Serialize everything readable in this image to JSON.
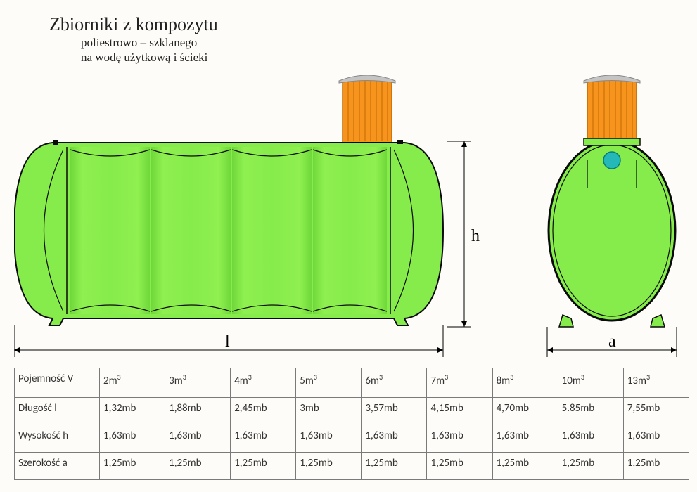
{
  "title": "Zbiorniki z kompozytu",
  "subtitle1": "poliestrowo – szklanego",
  "subtitle2": "na wodę użytkową i ścieki",
  "dim_l": "l",
  "dim_h": "h",
  "dim_a": "a",
  "colors": {
    "tank_fill": "#86ec4b",
    "tank_stroke": "#0a0a0a",
    "riser_fill": "#f7941e",
    "riser_stroke": "#c06a00",
    "cap_fill": "#c4c4c4",
    "port_fill": "#24b8b8",
    "bg": "#fdfcf8",
    "grid": "#7a7a7a"
  },
  "table": {
    "headers": [
      "Pojemność V",
      "2m³",
      "3m³",
      "4m³",
      "5m³",
      "6m³",
      "7m³",
      "8m³",
      "10m³",
      "13m³"
    ],
    "rows": [
      [
        "Długość l",
        "1,32mb",
        "1,88mb",
        "2,45mb",
        "3mb",
        "3,57mb",
        "4,15mb",
        "4,70mb",
        "5.85mb",
        "7,55mb"
      ],
      [
        "Wysokość h",
        "1,63mb",
        "1,63mb",
        "1,63mb",
        "1,63mb",
        "1,63mb",
        "1,63mb",
        "1,63mb",
        "1,63mb",
        "1,63mb"
      ],
      [
        "Szerokość a",
        "1,25mb",
        "1,25mb",
        "1,25mb",
        "1,25mb",
        "1,25mb",
        "1,25mb",
        "1,25mb",
        "1,25mb",
        "1,25mb"
      ]
    ]
  }
}
